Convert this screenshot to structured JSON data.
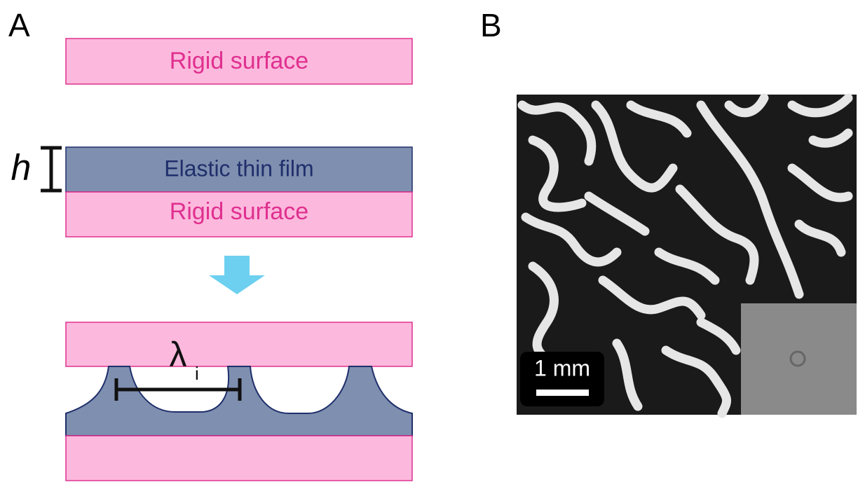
{
  "panel_a": {
    "label": "A",
    "top_plate": "Rigid surface",
    "thickness": "h",
    "film": "Elastic thin film",
    "bottom_plate": "Rigid surface",
    "wavelength": "λ",
    "wavelength_subscript": "i"
  },
  "panel_b": {
    "label": "B",
    "scale_bar": "1 mm"
  }
}
